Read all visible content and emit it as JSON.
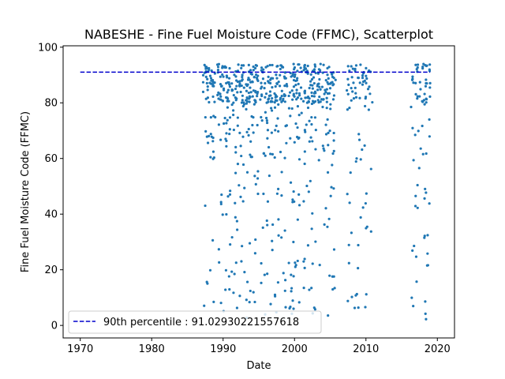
{
  "chart_data": {
    "type": "scatter",
    "title": "NABESHE - Fine Fuel Moisture Code (FFMC), Scatterplot",
    "xlabel": "Date",
    "ylabel": "Fine Fuel Moisture Code (FFMC)",
    "xlim": [
      1967.6,
      2022.4
    ],
    "ylim": [
      -4.5,
      100.5
    ],
    "xticks": [
      1970,
      1980,
      1990,
      2000,
      2010,
      2020
    ],
    "yticks": [
      0,
      20,
      40,
      60,
      80,
      100
    ],
    "grid": false,
    "legend_position": "lower-left",
    "colors": {
      "points": "#1f77b4",
      "reference_line": "#0000cc"
    },
    "reference_line": {
      "label": "90th percentile : 91.02930221557618",
      "y": 91.02930221557618,
      "x_range": [
        1970,
        2019
      ]
    },
    "series": [
      {
        "name": "",
        "clusters": [
          {
            "x_range": [
              1987.2,
              1988.9
            ],
            "count": 60
          },
          {
            "x_range": [
              1989.2,
              1991.0
            ],
            "count": 75
          },
          {
            "x_range": [
              1991.2,
              1993.0
            ],
            "count": 75
          },
          {
            "x_range": [
              1993.2,
              1995.0
            ],
            "count": 80
          },
          {
            "x_range": [
              1995.2,
              1997.0
            ],
            "count": 70
          },
          {
            "x_range": [
              1997.2,
              1999.0
            ],
            "count": 70
          },
          {
            "x_range": [
              1999.2,
              2001.0
            ],
            "count": 75
          },
          {
            "x_range": [
              2001.2,
              2003.0
            ],
            "count": 80
          },
          {
            "x_range": [
              2003.2,
              2005.8
            ],
            "count": 85
          },
          {
            "x_range": [
              2007.3,
              2010.9
            ],
            "count": 80
          },
          {
            "x_range": [
              2016.3,
              2019.0
            ],
            "count": 75
          }
        ]
      }
    ]
  }
}
